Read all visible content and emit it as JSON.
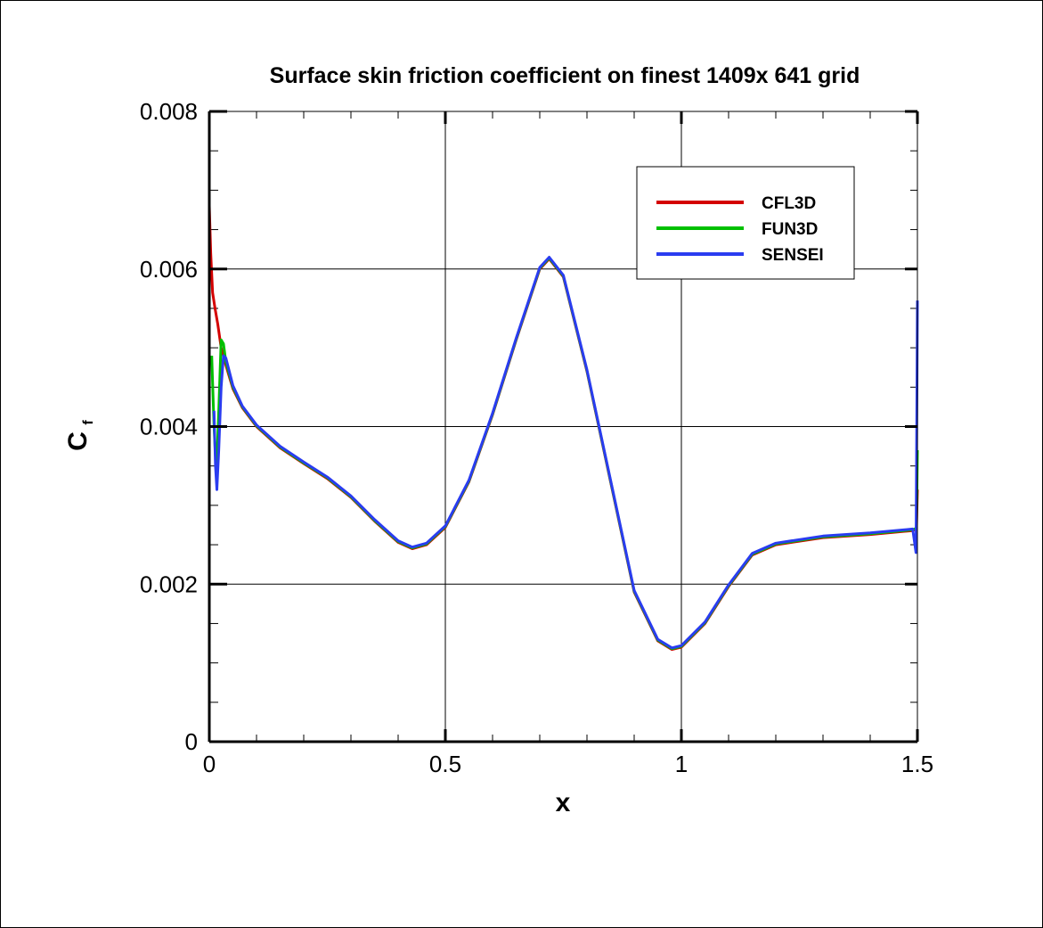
{
  "chart_data": {
    "type": "line",
    "title": "Surface skin friction coefficient on finest 1409x 641 grid",
    "xlabel": "x",
    "ylabel_main": "C",
    "ylabel_sub": "f",
    "xlim": [
      0,
      1.5
    ],
    "ylim": [
      0,
      0.008
    ],
    "xticks": [
      {
        "value": 0,
        "label": "0"
      },
      {
        "value": 0.5,
        "label": "0.5"
      },
      {
        "value": 1,
        "label": "1"
      },
      {
        "value": 1.5,
        "label": "1.5"
      }
    ],
    "yticks": [
      {
        "value": 0,
        "label": "0"
      },
      {
        "value": 0.002,
        "label": "0.002"
      },
      {
        "value": 0.004,
        "label": "0.004"
      },
      {
        "value": 0.006,
        "label": "0.006"
      },
      {
        "value": 0.008,
        "label": "0.008"
      }
    ],
    "grid": true,
    "legend_position": "top-right",
    "series": [
      {
        "name": "CFL3D",
        "color": "#d40000",
        "points": [
          [
            0.0,
            0.0068
          ],
          [
            0.003,
            0.0062
          ],
          [
            0.007,
            0.0057
          ],
          [
            0.012,
            0.0055
          ],
          [
            0.018,
            0.0053
          ],
          [
            0.025,
            0.005
          ],
          [
            0.035,
            0.00478
          ],
          [
            0.05,
            0.00448
          ],
          [
            0.07,
            0.00424
          ],
          [
            0.1,
            0.004
          ],
          [
            0.15,
            0.00373
          ],
          [
            0.2,
            0.00353
          ],
          [
            0.25,
            0.00334
          ],
          [
            0.3,
            0.0031
          ],
          [
            0.35,
            0.0028
          ],
          [
            0.4,
            0.00253
          ],
          [
            0.43,
            0.00245
          ],
          [
            0.46,
            0.0025
          ],
          [
            0.5,
            0.00272
          ],
          [
            0.55,
            0.0033
          ],
          [
            0.6,
            0.00415
          ],
          [
            0.65,
            0.0051
          ],
          [
            0.7,
            0.006
          ],
          [
            0.72,
            0.00613
          ],
          [
            0.75,
            0.0059
          ],
          [
            0.8,
            0.0047
          ],
          [
            0.85,
            0.0033
          ],
          [
            0.9,
            0.0019
          ],
          [
            0.95,
            0.00128
          ],
          [
            0.98,
            0.00117
          ],
          [
            1.0,
            0.0012
          ],
          [
            1.05,
            0.0015
          ],
          [
            1.1,
            0.00197
          ],
          [
            1.15,
            0.00237
          ],
          [
            1.2,
            0.0025
          ],
          [
            1.3,
            0.00259
          ],
          [
            1.4,
            0.00263
          ],
          [
            1.49,
            0.00268
          ],
          [
            1.498,
            0.0027
          ],
          [
            1.5,
            0.0032
          ]
        ]
      },
      {
        "name": "FUN3D",
        "color": "#00c000",
        "points": [
          [
            0.005,
            0.0049
          ],
          [
            0.01,
            0.004
          ],
          [
            0.015,
            0.0034
          ],
          [
            0.02,
            0.0042
          ],
          [
            0.025,
            0.0051
          ],
          [
            0.03,
            0.00505
          ],
          [
            0.035,
            0.00482
          ],
          [
            0.05,
            0.0045
          ],
          [
            0.07,
            0.00425
          ],
          [
            0.1,
            0.00401
          ],
          [
            0.15,
            0.00374
          ],
          [
            0.2,
            0.00354
          ],
          [
            0.25,
            0.00335
          ],
          [
            0.3,
            0.00311
          ],
          [
            0.35,
            0.00281
          ],
          [
            0.4,
            0.00254
          ],
          [
            0.43,
            0.00246
          ],
          [
            0.46,
            0.00251
          ],
          [
            0.5,
            0.00273
          ],
          [
            0.55,
            0.00331
          ],
          [
            0.6,
            0.00416
          ],
          [
            0.65,
            0.00511
          ],
          [
            0.7,
            0.00601
          ],
          [
            0.72,
            0.00614
          ],
          [
            0.75,
            0.00591
          ],
          [
            0.8,
            0.00471
          ],
          [
            0.85,
            0.00331
          ],
          [
            0.9,
            0.00191
          ],
          [
            0.95,
            0.00129
          ],
          [
            0.98,
            0.00118
          ],
          [
            1.0,
            0.00121
          ],
          [
            1.05,
            0.00151
          ],
          [
            1.1,
            0.00198
          ],
          [
            1.15,
            0.00238
          ],
          [
            1.2,
            0.00251
          ],
          [
            1.3,
            0.0026
          ],
          [
            1.4,
            0.00264
          ],
          [
            1.49,
            0.00269
          ],
          [
            1.498,
            0.00271
          ],
          [
            1.5,
            0.0037
          ]
        ]
      },
      {
        "name": "SENSEI",
        "color": "#2a3cf0",
        "points": [
          [
            0.01,
            0.0042
          ],
          [
            0.013,
            0.0035
          ],
          [
            0.016,
            0.0032
          ],
          [
            0.02,
            0.0037
          ],
          [
            0.025,
            0.0045
          ],
          [
            0.03,
            0.0049
          ],
          [
            0.035,
            0.00487
          ],
          [
            0.05,
            0.00452
          ],
          [
            0.07,
            0.00426
          ],
          [
            0.1,
            0.00402
          ],
          [
            0.15,
            0.00375
          ],
          [
            0.2,
            0.00355
          ],
          [
            0.25,
            0.00336
          ],
          [
            0.3,
            0.00312
          ],
          [
            0.35,
            0.00282
          ],
          [
            0.4,
            0.00255
          ],
          [
            0.43,
            0.00247
          ],
          [
            0.46,
            0.00252
          ],
          [
            0.5,
            0.00274
          ],
          [
            0.55,
            0.00332
          ],
          [
            0.6,
            0.00417
          ],
          [
            0.65,
            0.00512
          ],
          [
            0.7,
            0.00602
          ],
          [
            0.72,
            0.00615
          ],
          [
            0.75,
            0.00592
          ],
          [
            0.8,
            0.00472
          ],
          [
            0.85,
            0.00332
          ],
          [
            0.9,
            0.00192
          ],
          [
            0.95,
            0.0013
          ],
          [
            0.98,
            0.00119
          ],
          [
            1.0,
            0.00122
          ],
          [
            1.05,
            0.00152
          ],
          [
            1.1,
            0.00199
          ],
          [
            1.15,
            0.00239
          ],
          [
            1.2,
            0.00252
          ],
          [
            1.3,
            0.00261
          ],
          [
            1.4,
            0.00265
          ],
          [
            1.49,
            0.0027
          ],
          [
            1.497,
            0.0024
          ],
          [
            1.499,
            0.0045
          ],
          [
            1.5,
            0.0056
          ]
        ]
      }
    ]
  }
}
